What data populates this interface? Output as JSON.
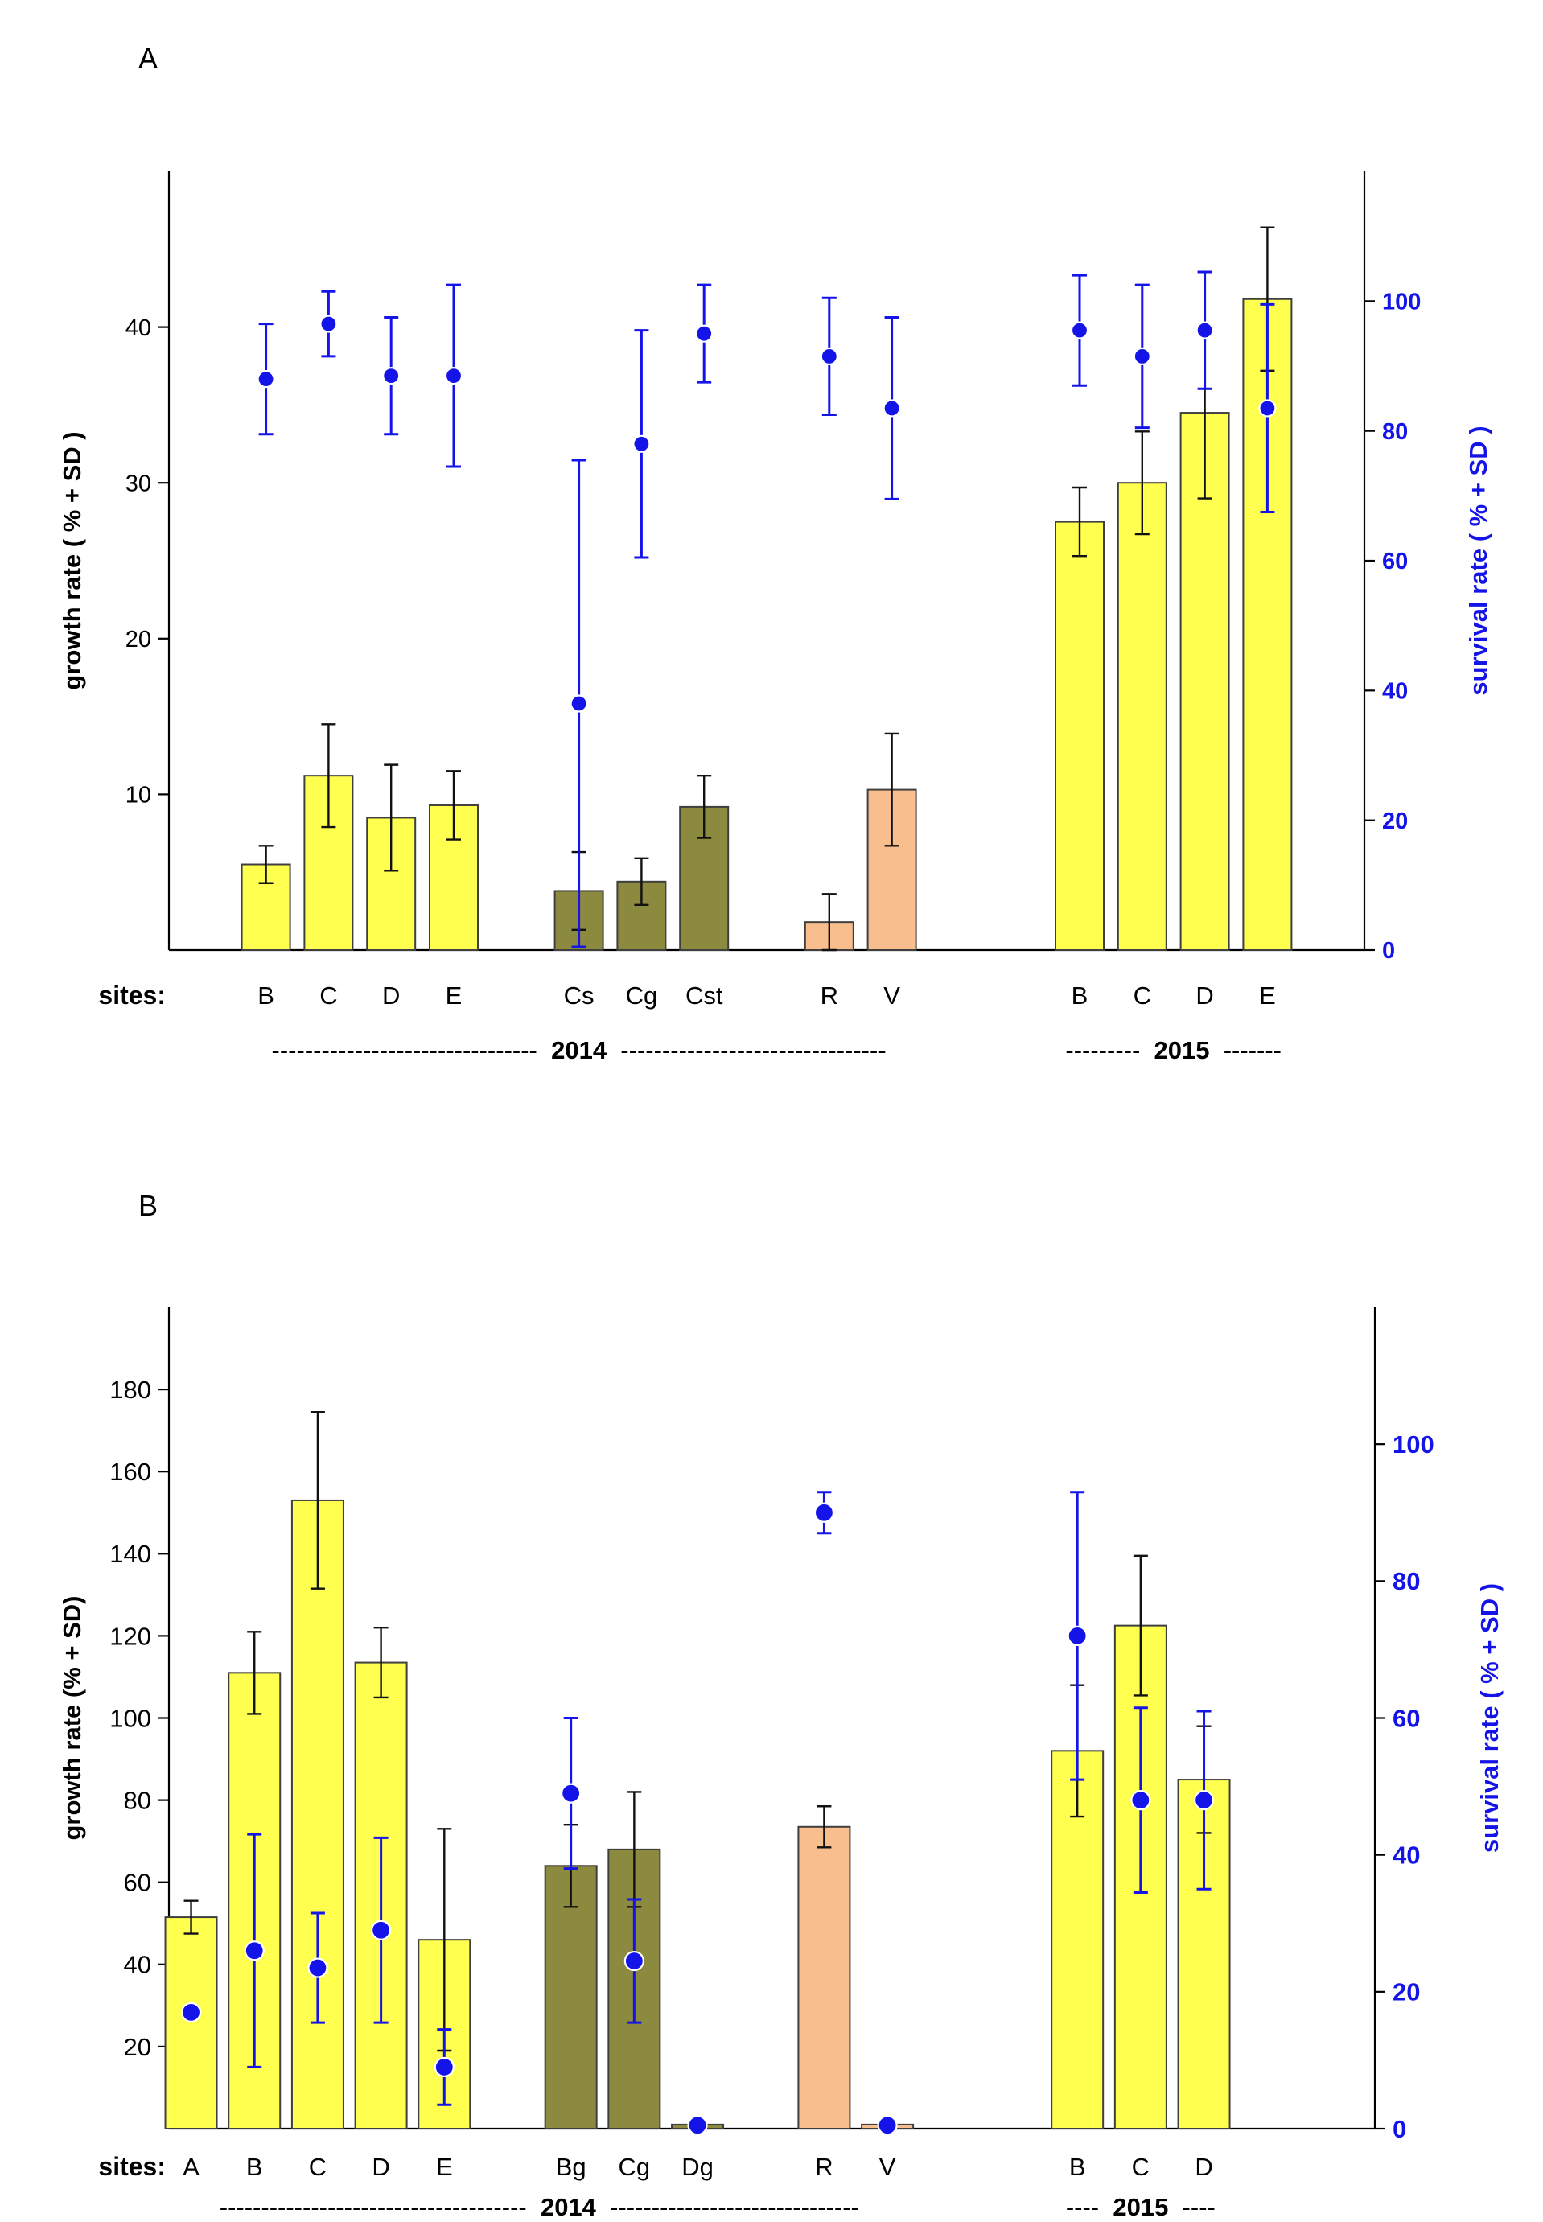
{
  "colors": {
    "yellow": "#FFFF4F",
    "olive": "#8C8A3E",
    "salmon": "#F9BE8D",
    "bar_border": "#3F3F3F",
    "blue": "#1414E8",
    "black": "#111111",
    "background": "#FFFFFF"
  },
  "chart_data": [
    {
      "type": "bar",
      "panel": "A",
      "title": "",
      "ylabel_left": "growth rate  ( % + SD )",
      "ylabel_right": "survival rate ( % + SD )",
      "y_left_ticks": [
        10,
        20,
        30,
        40
      ],
      "y_left_max": 50,
      "y_right_ticks": [
        0,
        20,
        40,
        60,
        80,
        100
      ],
      "y_right_max": 120,
      "sites_label": "sites:",
      "legend_position": "none",
      "grid": false,
      "series": [
        {
          "name": "growth rate (bars, left axis)",
          "type": "bar"
        },
        {
          "name": "survival rate (dots, right axis)",
          "type": "scatter"
        }
      ],
      "groups": [
        {
          "color": "yellow",
          "bars": [
            {
              "site": "B",
              "growth": 5.5,
              "growth_err": 1.2,
              "survival": 88,
              "survival_err": 8.5
            },
            {
              "site": "C",
              "growth": 11.2,
              "growth_err": 3.3,
              "survival": 96.5,
              "survival_err": 5
            },
            {
              "site": "D",
              "growth": 8.5,
              "growth_err": 3.4,
              "survival": 88.5,
              "survival_err": 9
            },
            {
              "site": "E",
              "growth": 9.3,
              "growth_err": 2.2,
              "survival": 88.5,
              "survival_err": 14
            }
          ]
        },
        {
          "color": "olive",
          "bars": [
            {
              "site": "Cs",
              "growth": 3.8,
              "growth_err": 2.5,
              "survival": 38,
              "survival_err": 37.5
            },
            {
              "site": "Cg",
              "growth": 4.4,
              "growth_err": 1.5,
              "survival": 78,
              "survival_err": 17.5
            },
            {
              "site": "Cst",
              "growth": 9.2,
              "growth_err": 2.0,
              "survival": 95,
              "survival_err": 7.5
            }
          ]
        },
        {
          "color": "salmon",
          "bars": [
            {
              "site": "R",
              "growth": 1.8,
              "growth_err": 1.8,
              "survival": 91.5,
              "survival_err": 9
            },
            {
              "site": "V",
              "growth": 10.3,
              "growth_err": 3.6,
              "survival": 83.5,
              "survival_err": 14
            }
          ]
        },
        {
          "color": "yellow",
          "bars": [
            {
              "site": "B",
              "growth": 27.5,
              "growth_err": 2.2,
              "survival": 95.5,
              "survival_err": 8.5
            },
            {
              "site": "C",
              "growth": 30,
              "growth_err": 3.3,
              "survival": 91.5,
              "survival_err": 11
            },
            {
              "site": "D",
              "growth": 34.5,
              "growth_err": 5.5,
              "survival": 95.5,
              "survival_err": 9
            },
            {
              "site": "E",
              "growth": 41.8,
              "growth_err": 4.6,
              "survival": 83.5,
              "survival_err": 16
            }
          ]
        }
      ],
      "year_rows": [
        {
          "dashes_left": "--------------------------------",
          "year": "2014",
          "dashes_right": "--------------------------------",
          "from_group": 0,
          "to_group": 2
        },
        {
          "dashes_left": "---------",
          "year": "2015",
          "dashes_right": "-------",
          "from_group": 3,
          "to_group": 3
        }
      ]
    },
    {
      "type": "bar",
      "panel": "B",
      "title": "",
      "ylabel_left": "growth rate  (% + SD)",
      "ylabel_right": "survival rate ( % + SD )",
      "y_left_ticks": [
        20,
        40,
        60,
        80,
        100,
        120,
        140,
        160,
        180
      ],
      "y_left_max": 200,
      "y_right_ticks": [
        0,
        20,
        40,
        60,
        80,
        100
      ],
      "y_right_max": 120,
      "sites_label": "sites:",
      "legend_position": "none",
      "grid": false,
      "series": [
        {
          "name": "growth rate (bars, left axis)",
          "type": "bar"
        },
        {
          "name": "survival rate (dots, right axis)",
          "type": "scatter"
        }
      ],
      "groups": [
        {
          "color": "yellow",
          "bars": [
            {
              "site": "A",
              "growth": 51.5,
              "growth_err": 4,
              "survival": 17,
              "survival_err": 0
            },
            {
              "site": "B",
              "growth": 111,
              "growth_err": 10,
              "survival": 26,
              "survival_err": 17
            },
            {
              "site": "C",
              "growth": 153,
              "growth_err": 21.5,
              "survival": 23.5,
              "survival_err": 8
            },
            {
              "site": "D",
              "growth": 113.5,
              "growth_err": 8.5,
              "survival": 29,
              "survival_err": 13.5
            },
            {
              "site": "E",
              "growth": 46,
              "growth_err": 27,
              "survival": 9,
              "survival_err": 5.5
            }
          ]
        },
        {
          "color": "olive",
          "bars": [
            {
              "site": "Bg",
              "growth": 64,
              "growth_err": 10,
              "survival": 49,
              "survival_err": 11
            },
            {
              "site": "Cg",
              "growth": 68,
              "growth_err": 14,
              "survival": 24.5,
              "survival_err": 9
            },
            {
              "site": "Dg",
              "growth": 1,
              "growth_err": 0,
              "survival": 0.5,
              "survival_err": 0
            }
          ]
        },
        {
          "color": "salmon",
          "bars": [
            {
              "site": "R",
              "growth": 73.5,
              "growth_err": 5,
              "survival": 90,
              "survival_err": 3
            },
            {
              "site": "V",
              "growth": 1,
              "growth_err": 0,
              "survival": 0.5,
              "survival_err": 0
            }
          ]
        },
        {
          "color": "yellow",
          "bars": [
            {
              "site": "B",
              "growth": 92,
              "growth_err": 16,
              "survival": 72,
              "survival_err": 21
            },
            {
              "site": "C",
              "growth": 122.5,
              "growth_err": 17,
              "survival": 48,
              "survival_err": 13.5
            },
            {
              "site": "D",
              "growth": 85,
              "growth_err": 13,
              "survival": 48,
              "survival_err": 13
            }
          ]
        }
      ],
      "year_rows": [
        {
          "dashes_left": "-------------------------------------",
          "year": "2014",
          "dashes_right": "------------------------------",
          "from_group": 0,
          "to_group": 2
        },
        {
          "dashes_left": "----",
          "year": "2015",
          "dashes_right": "----",
          "from_group": 3,
          "to_group": 3
        }
      ]
    }
  ]
}
